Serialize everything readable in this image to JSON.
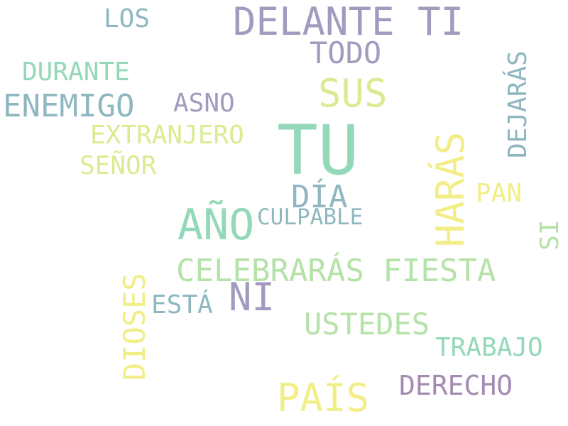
{
  "palette": {
    "background": "#ffffff",
    "purple": "#a39bbf",
    "teal": "#8fb7c0",
    "mint": "#93d8b8",
    "green": "#b5e2a8",
    "lime": "#d9ec92",
    "yellow": "#f2ee87",
    "mauve": "#a48bb2"
  },
  "words": {
    "tu": "TU",
    "delante_ti": "DELANTE TI",
    "los": "LOS",
    "todo": "TODO",
    "durante": "DURANTE",
    "sus": "SUS",
    "dejaras": "DEJARÁS",
    "enemigo": "ENEMIGO",
    "asno": "ASNO",
    "extranjero": "EXTRANJERO",
    "senor": "SEÑOR",
    "haras": "HARÁS",
    "dia": "DÍA",
    "pan": "PAN",
    "ano": "AÑO",
    "culpable": "CULPABLE",
    "si": "SI",
    "celebraras_fiesta": "CELEBRARÁS FIESTA",
    "dioses": "DIOSES",
    "ni": "NI",
    "esta": "ESTÁ",
    "ustedes": "USTEDES",
    "trabajo": "TRABAJO",
    "derecho": "DERECHO",
    "pais": "PAÍS"
  }
}
